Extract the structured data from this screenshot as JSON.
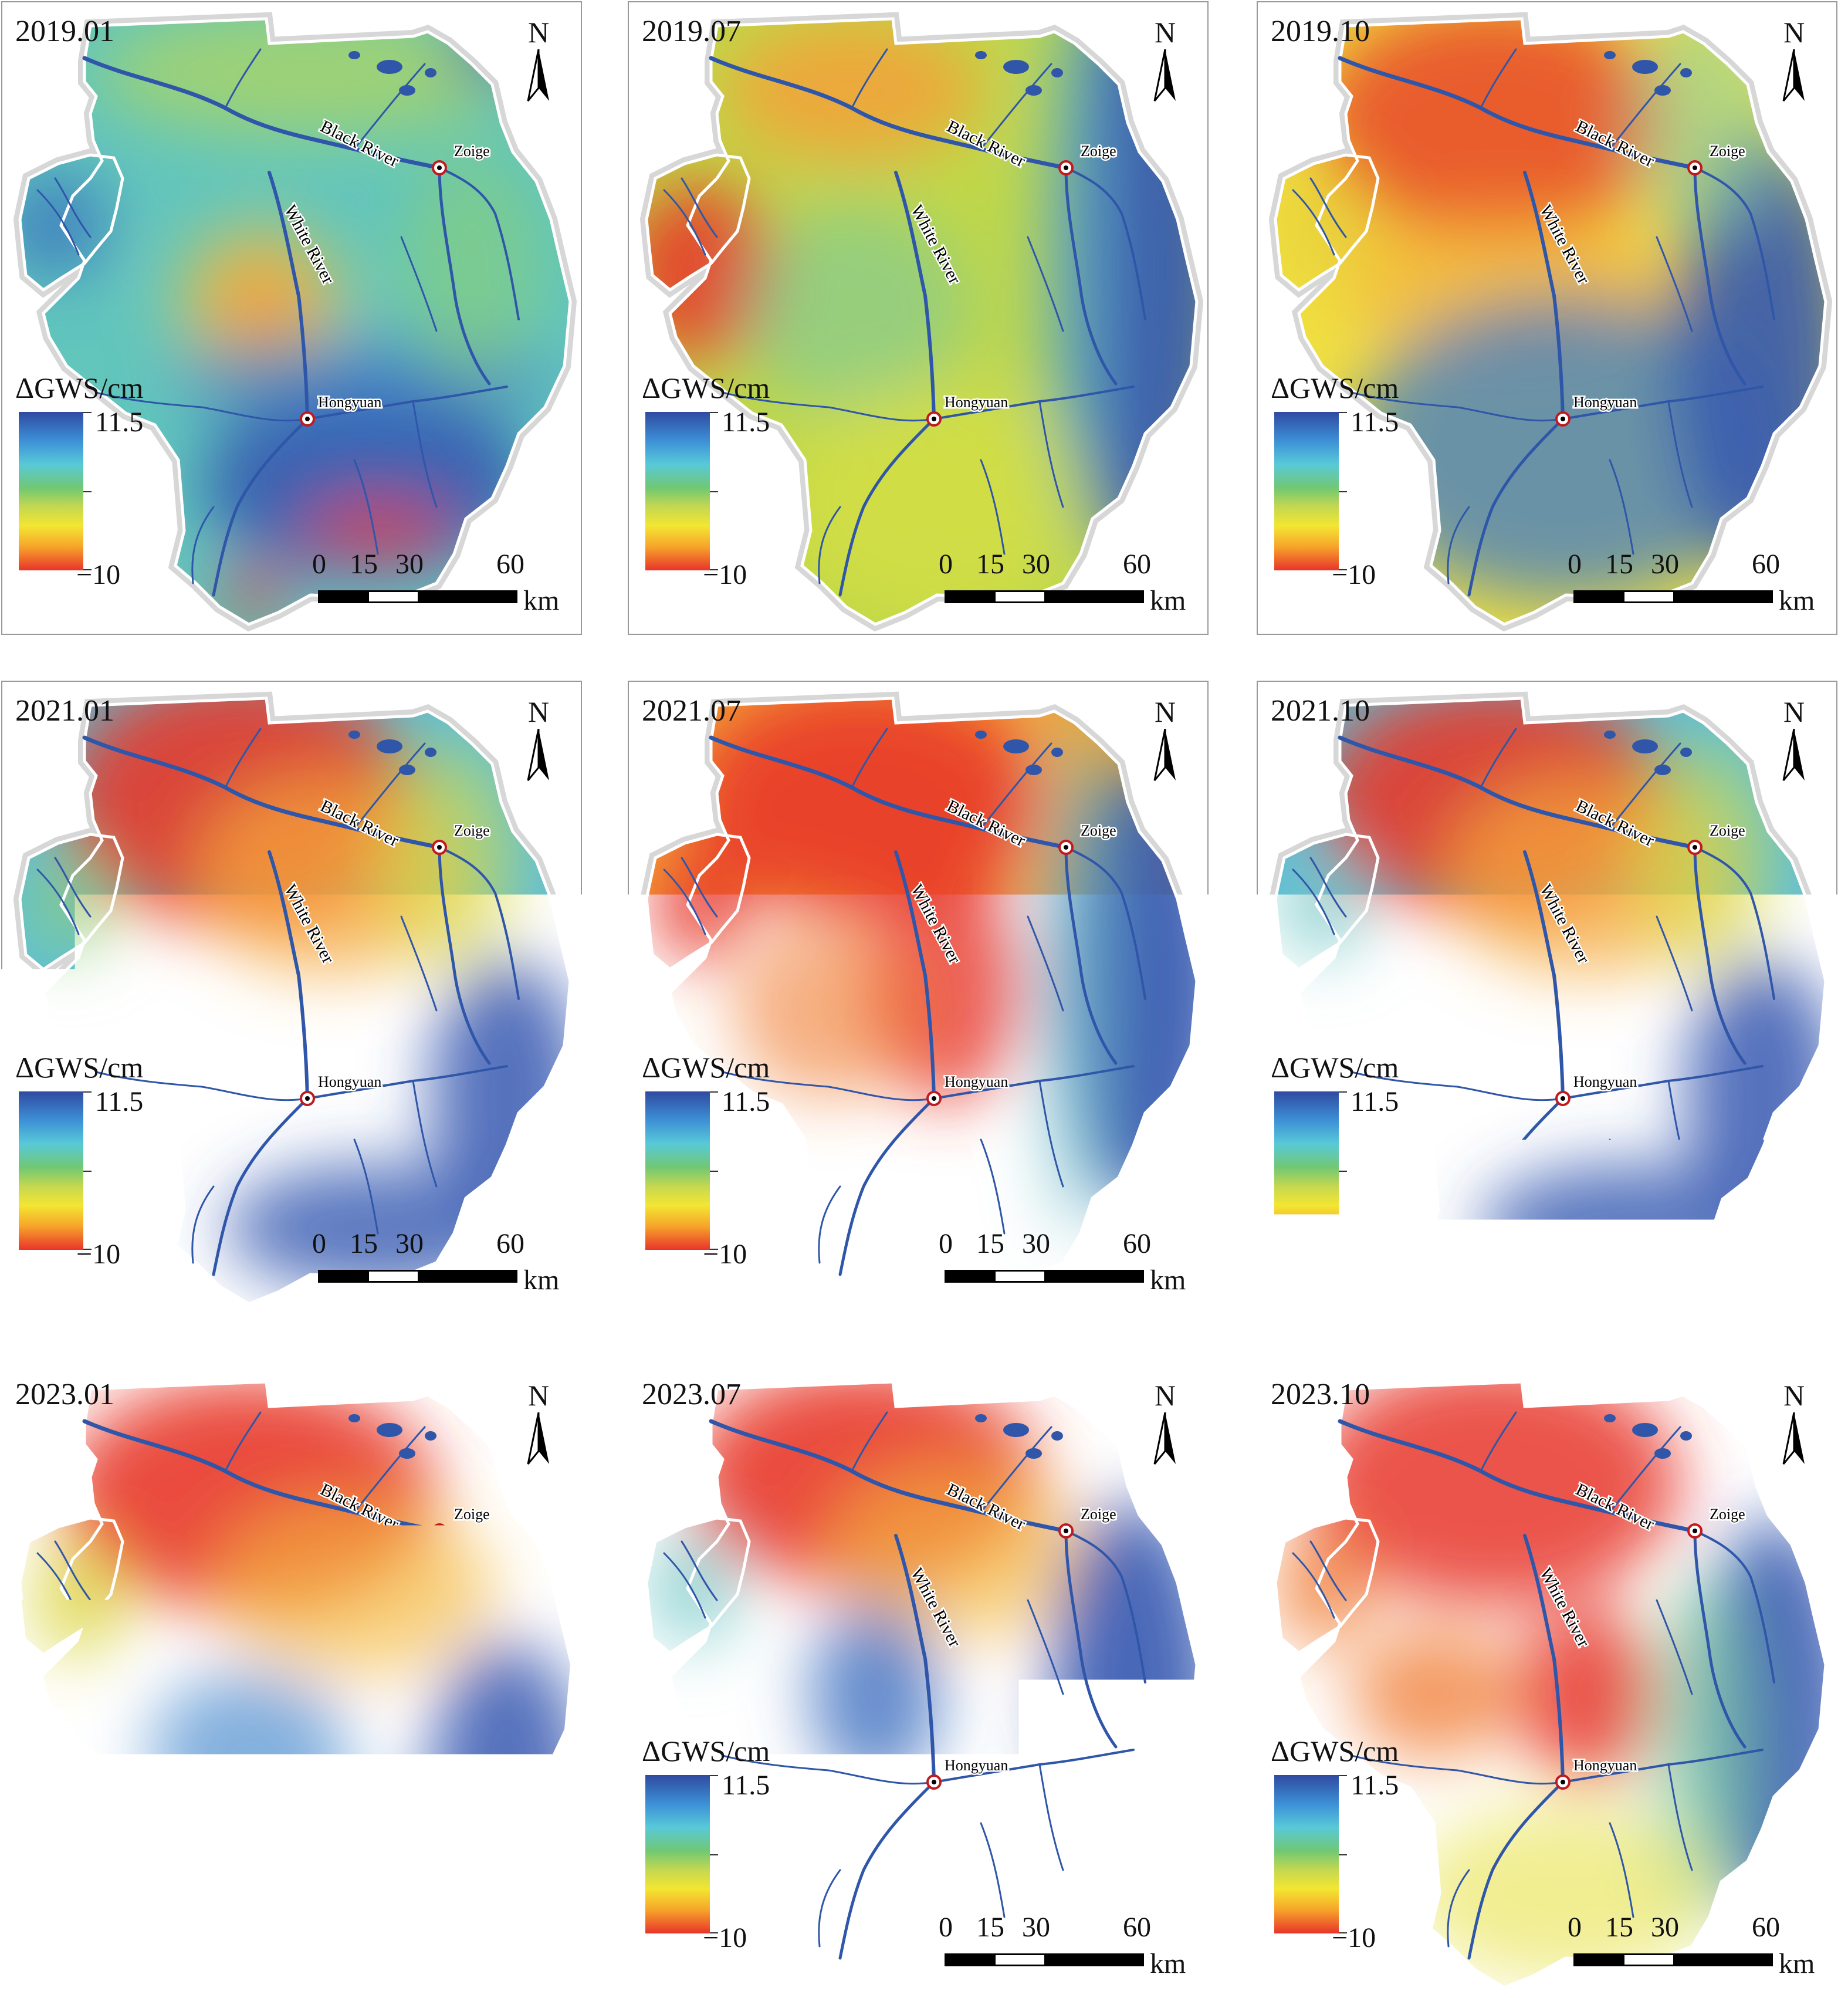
{
  "panels": [
    {
      "title": "2019.01"
    },
    {
      "title": "2019.07"
    },
    {
      "title": "2019.10"
    },
    {
      "title": "2021.01"
    },
    {
      "title": "2021.07"
    },
    {
      "title": "2021.10"
    },
    {
      "title": "2023.01"
    },
    {
      "title": "2023.07"
    },
    {
      "title": "2023.10"
    }
  ],
  "north_label": "N",
  "legend": {
    "title": "ΔGWS/cm",
    "max": "11.5",
    "min": "−10"
  },
  "scale_bar": {
    "ticks": [
      "0",
      "15",
      "30",
      "60"
    ],
    "unit": "km"
  },
  "places": {
    "zoige": "Zoige",
    "hongyuan": "Hongyuan",
    "black_river": "Black River",
    "white_river": "White River"
  },
  "colors": {
    "high": "#2f4aa0",
    "mid_high": "#58c9d8",
    "mid": "#71c873",
    "mid_low": "#f3e632",
    "low": "#e8342a",
    "river": "#2f56a8"
  }
}
